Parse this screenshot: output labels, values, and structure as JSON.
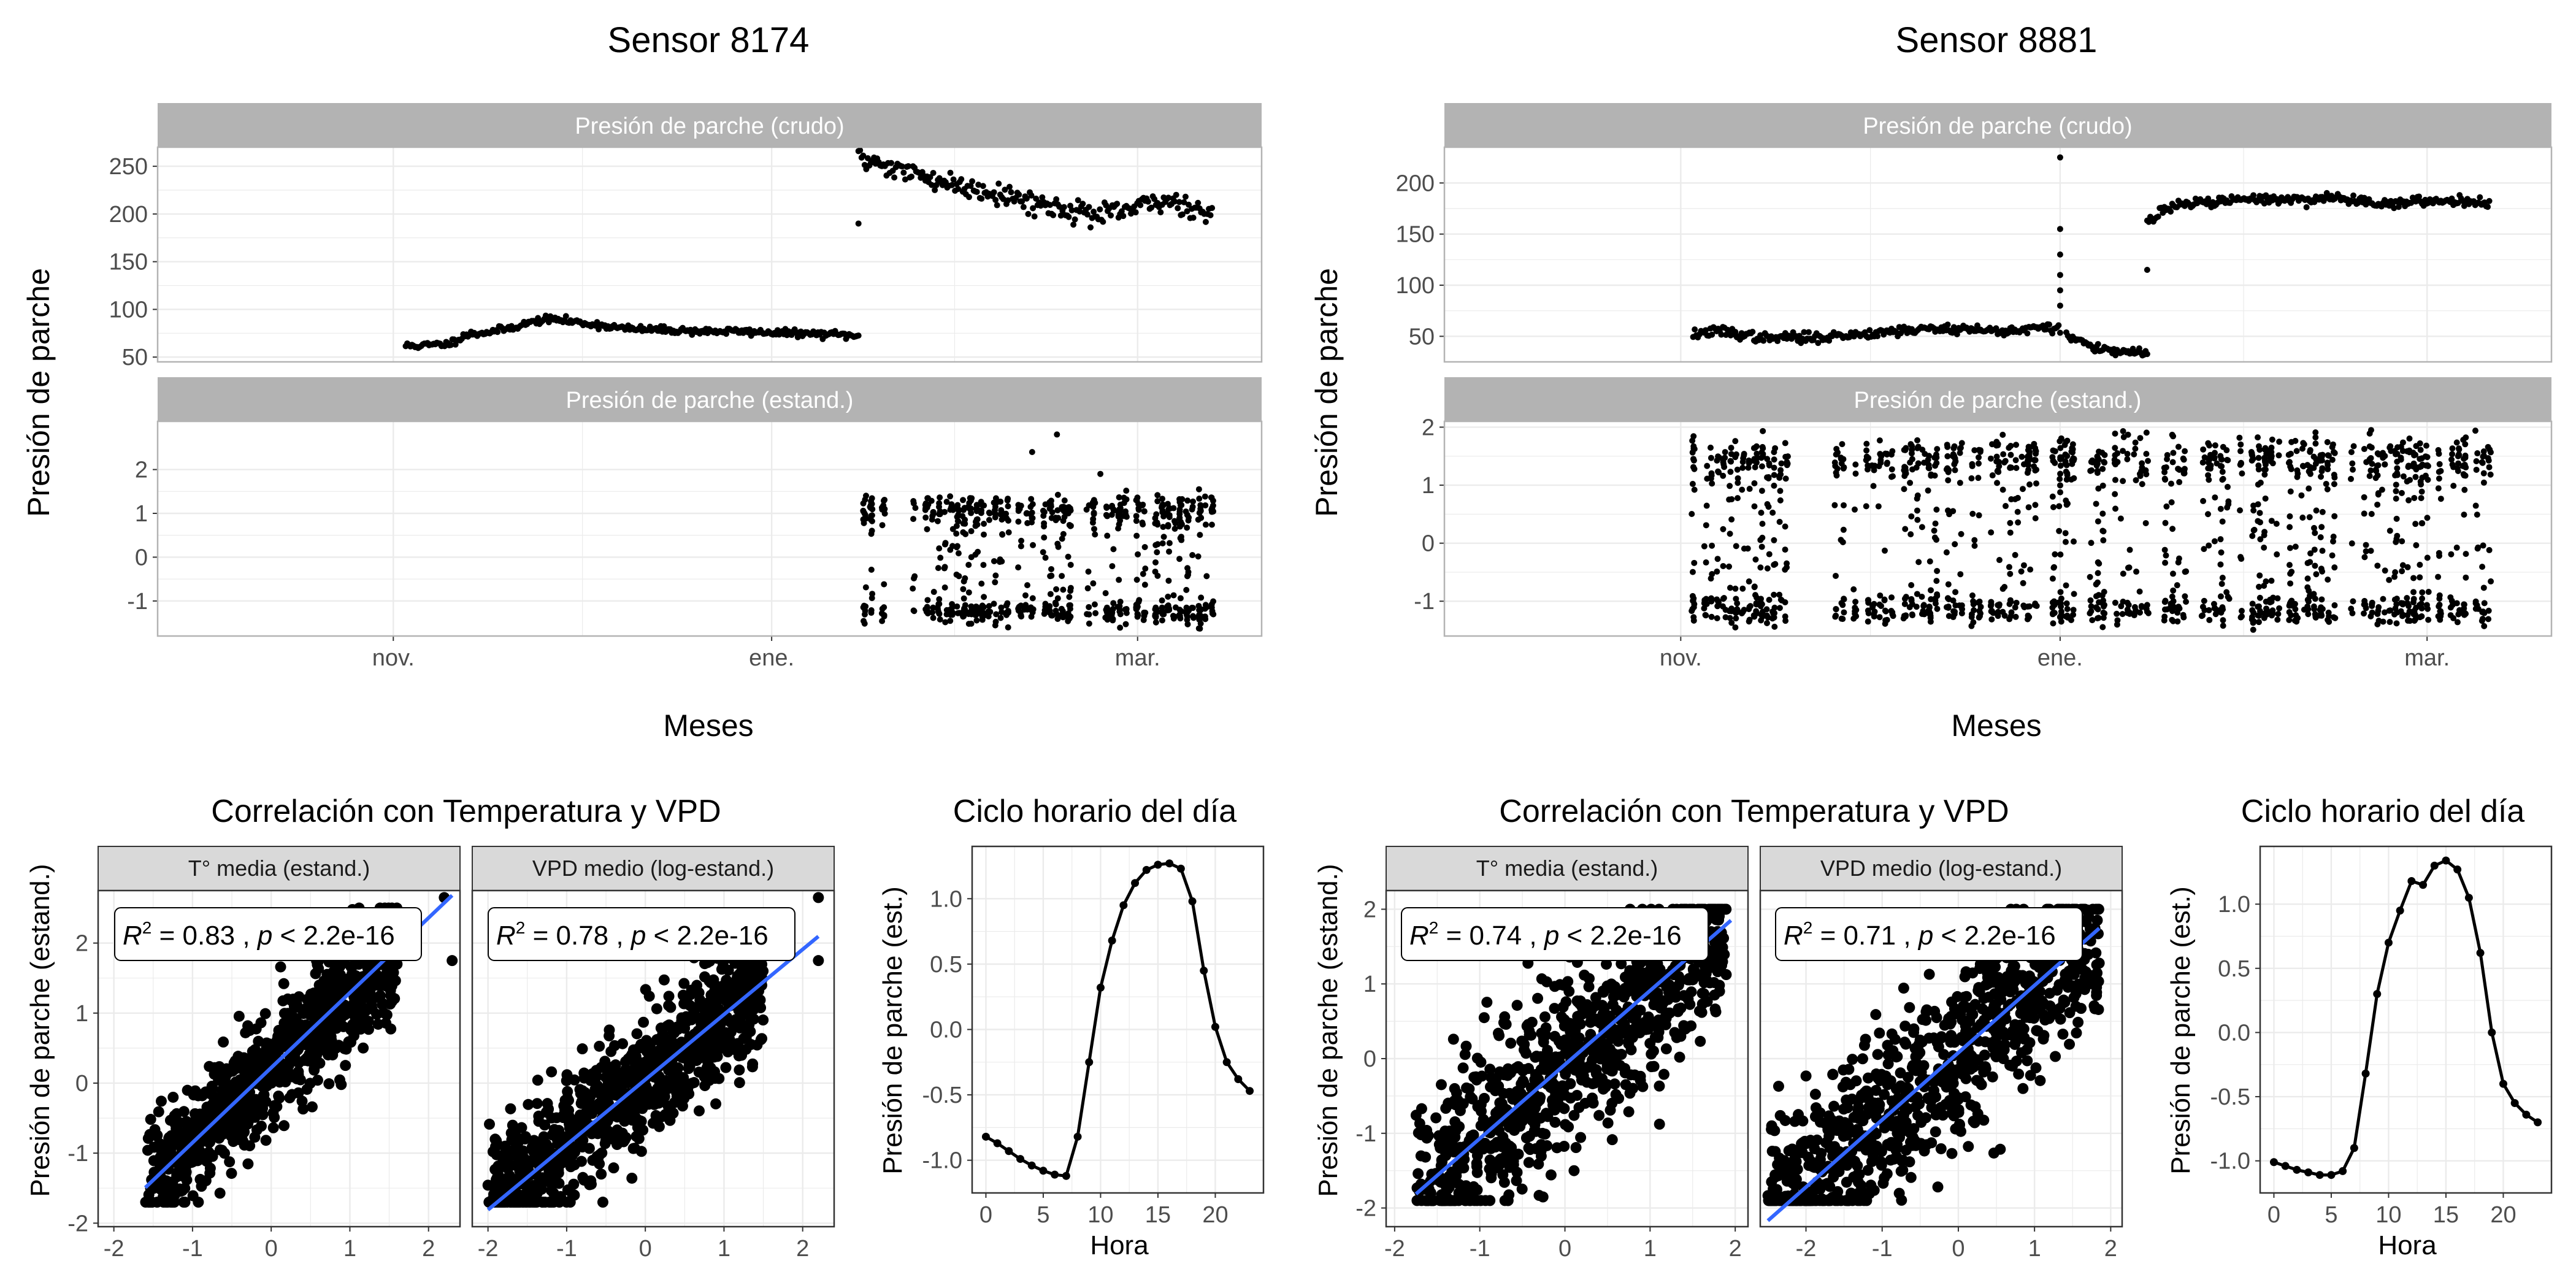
{
  "figure": {
    "sensor_a": {
      "title": "Sensor 8174",
      "ylabel": "Presión de parche",
      "xlabel": "Meses",
      "strip_raw": "Presión de parche (crudo)",
      "strip_std": "Presión de parche (estand.)",
      "corr_title": "Correlación con Temperatura y VPD",
      "corr_ylabel": "Presión de parche (estand.)",
      "strip_temp": "T° media (estand.)",
      "strip_vpd": "VPD medio (log-estand.)",
      "stat_temp": {
        "r2": "0.83",
        "p": "2.2e-16"
      },
      "stat_vpd": {
        "r2": "0.78",
        "p": "2.2e-16"
      },
      "cycle_title": "Ciclo horario del día",
      "cycle_ylabel": "Presión de parche (est.)",
      "cycle_xlabel": "Hora"
    },
    "sensor_b": {
      "title": "Sensor 8881",
      "ylabel": "Presión de parche",
      "xlabel": "Meses",
      "strip_raw": "Presión de parche (crudo)",
      "strip_std": "Presión de parche (estand.)",
      "corr_title": "Correlación con Temperatura y VPD",
      "corr_ylabel": "Presión de parche (estand.)",
      "strip_temp": "T° media (estand.)",
      "strip_vpd": "VPD medio (log-estand.)",
      "stat_temp": {
        "r2": "0.74",
        "p": "2.2e-16"
      },
      "stat_vpd": {
        "r2": "0.71",
        "p": "2.2e-16"
      },
      "cycle_title": "Ciclo horario del día",
      "cycle_ylabel": "Presión de parche (est.)",
      "cycle_xlabel": "Hora"
    }
  },
  "colors": {
    "points": "#000000",
    "fit_line": "#3366ff",
    "strip_dark": "#b3b3b3",
    "strip_light": "#d9d9d9",
    "grid": "#ebebeb",
    "panel_border": "#b3b3b3"
  },
  "chart_data": [
    {
      "id": "s8174_raw",
      "type": "scatter",
      "title": "Sensor 8174",
      "facet": "Presión de parche (crudo)",
      "xlabel": "Meses",
      "ylabel": "Presión de parche",
      "x_ticks": [
        "nov.",
        "ene.",
        "mar."
      ],
      "y_ticks": [
        50,
        100,
        150,
        200,
        250
      ],
      "ylim": [
        45,
        270
      ],
      "x_ticks_days": [
        0,
        61,
        120
      ],
      "xlim_days": [
        -38,
        140
      ],
      "segments": [
        {
          "name": "fase 1",
          "x_start": 2,
          "x_end": 75,
          "values": [
            62,
            62,
            63,
            64,
            73,
            75,
            77,
            80,
            84,
            88,
            90,
            88,
            86,
            84,
            82,
            80,
            79,
            79,
            78,
            78,
            77,
            77,
            77,
            77,
            76,
            76,
            75,
            75,
            74,
            74,
            73,
            72
          ],
          "spread": 3
        },
        {
          "name": "fase 2",
          "x_start": 75,
          "x_end": 132,
          "values": [
            258,
            256,
            250,
            245,
            240,
            236,
            232,
            228,
            226,
            222,
            218,
            214,
            210,
            206,
            205,
            200,
            198,
            202,
            206,
            210,
            214,
            212,
            205,
            200
          ],
          "spread": 10
        }
      ],
      "outliers": [
        {
          "x": 75,
          "y": 190
        }
      ]
    },
    {
      "id": "s8174_std",
      "type": "scatter",
      "title": "Sensor 8174",
      "facet": "Presión de parche (estand.)",
      "xlabel": "Meses",
      "ylabel": "Presión de parche",
      "x_ticks": [
        "nov.",
        "ene.",
        "mar."
      ],
      "y_ticks": [
        -1,
        0,
        1,
        2
      ],
      "ylim": [
        -1.8,
        3.1
      ],
      "xlim_days": [
        -38,
        140
      ],
      "x_range_days": [
        75,
        132
      ],
      "y_range": [
        -1.5,
        1.5
      ],
      "outliers": [
        {
          "x": 107,
          "y": 2.8
        },
        {
          "x": 103,
          "y": 2.4
        },
        {
          "x": 114,
          "y": 1.9
        }
      ]
    },
    {
      "id": "s8881_raw",
      "type": "scatter",
      "title": "Sensor 8881",
      "facet": "Presión de parche (crudo)",
      "xlabel": "Meses",
      "ylabel": "Presión de parche",
      "x_ticks": [
        "nov.",
        "ene.",
        "mar."
      ],
      "y_ticks": [
        50,
        100,
        150,
        200
      ],
      "ylim": [
        25,
        235
      ],
      "xlim_days": [
        -38,
        140
      ],
      "segments": [
        {
          "name": "fase 1",
          "x_start": 2,
          "x_end": 61,
          "values": [
            52,
            54,
            55,
            52,
            50,
            47,
            50,
            48,
            49,
            50,
            51,
            52,
            54,
            55,
            56,
            57,
            57,
            58,
            57,
            56,
            55,
            56,
            57,
            58,
            58
          ],
          "spread": 4
        },
        {
          "name": "fase 2",
          "x_start": 62,
          "x_end": 75,
          "values": [
            50,
            47,
            44,
            40,
            37,
            35,
            34,
            35,
            34,
            33
          ],
          "spread": 3
        },
        {
          "name": "fase 3",
          "x_start": 75,
          "x_end": 130,
          "values": [
            162,
            172,
            178,
            180,
            181,
            182,
            183,
            184,
            185,
            184,
            183,
            184,
            186,
            185,
            183,
            182,
            180,
            180,
            181,
            182,
            183,
            183,
            182,
            181
          ],
          "spread": 4
        }
      ],
      "outliers": [
        {
          "x": 61,
          "y": 225
        },
        {
          "x": 61,
          "y": 155
        },
        {
          "x": 61,
          "y": 130
        },
        {
          "x": 61,
          "y": 110
        },
        {
          "x": 61,
          "y": 95
        },
        {
          "x": 61,
          "y": 80
        },
        {
          "x": 75,
          "y": 115
        }
      ]
    },
    {
      "id": "s8881_std",
      "type": "scatter",
      "title": "Sensor 8881",
      "facet": "Presión de parche (estand.)",
      "xlabel": "Meses",
      "ylabel": "Presión de parche",
      "x_ticks": [
        "nov.",
        "ene.",
        "mar."
      ],
      "y_ticks": [
        -1,
        0,
        1,
        2
      ],
      "ylim": [
        -1.6,
        2.1
      ],
      "xlim_days": [
        -38,
        140
      ],
      "x_range_days": [
        2,
        130
      ],
      "y_range": [
        -1.4,
        1.9
      ]
    },
    {
      "id": "s8174_temp",
      "type": "scatter",
      "facet": "T° media (estand.)",
      "ylabel": "Presión de parche (estand.)",
      "x_ticks": [
        -2,
        -1,
        0,
        1,
        2
      ],
      "y_ticks": [
        -2,
        1,
        0,
        -1,
        2
      ],
      "xlim": [
        -2.2,
        2.4
      ],
      "ylim": [
        -2.05,
        2.75
      ],
      "fit": {
        "slope": 1.07,
        "intercept": 0.22,
        "x_from": -1.6,
        "x_to": 2.3
      },
      "cloud": {
        "x_from": -1.6,
        "x_to": 1.6,
        "spread": 0.42
      },
      "outliers": [
        {
          "x": 2.2,
          "y": 2.65
        },
        {
          "x": 2.3,
          "y": 1.75
        }
      ],
      "stat_label": "R² = 0.83 , p < 2.2e-16"
    },
    {
      "id": "s8174_vpd",
      "type": "scatter",
      "facet": "VPD medio (log-estand.)",
      "x_ticks": [
        -2,
        -1,
        0,
        1,
        2
      ],
      "xlim": [
        -2.2,
        2.4
      ],
      "ylim": [
        -2.05,
        2.75
      ],
      "fit": {
        "slope": 0.93,
        "intercept": 0.05,
        "x_from": -2.0,
        "x_to": 2.2
      },
      "cloud": {
        "x_from": -2.0,
        "x_to": 1.5,
        "spread": 0.45
      },
      "outliers": [
        {
          "x": 2.2,
          "y": 2.65
        },
        {
          "x": 2.2,
          "y": 1.75
        }
      ],
      "stat_label": "R² = 0.78 , p < 2.2e-16"
    },
    {
      "id": "s8174_cycle",
      "type": "line",
      "title": "Ciclo horario del día",
      "xlabel": "Hora",
      "ylabel": "Presión de parche (est.)",
      "x_ticks": [
        0,
        5,
        10,
        15,
        20
      ],
      "y_ticks": [
        -1.0,
        -0.5,
        0.0,
        0.5,
        1.0
      ],
      "xlim": [
        -1.2,
        24.2
      ],
      "ylim": [
        -1.25,
        1.4
      ],
      "x": [
        0,
        1,
        2,
        3,
        4,
        5,
        6,
        7,
        8,
        9,
        10,
        11,
        12,
        13,
        14,
        15,
        16,
        17,
        18,
        19,
        20,
        21,
        22,
        23
      ],
      "y": [
        -0.82,
        -0.87,
        -0.93,
        -0.99,
        -1.04,
        -1.08,
        -1.11,
        -1.12,
        -0.82,
        -0.25,
        0.32,
        0.68,
        0.95,
        1.12,
        1.22,
        1.26,
        1.27,
        1.23,
        0.98,
        0.45,
        0.02,
        -0.25,
        -0.38,
        -0.47
      ]
    },
    {
      "id": "s8881_temp",
      "type": "scatter",
      "facet": "T° media (estand.)",
      "ylabel": "Presión de parche (estand.)",
      "x_ticks": [
        -2,
        -1,
        0,
        1,
        2
      ],
      "y_ticks": [
        -2,
        -1,
        0,
        1,
        2
      ],
      "xlim": [
        -2.1,
        2.15
      ],
      "ylim": [
        -2.25,
        2.25
      ],
      "fit": {
        "slope": 0.99,
        "intercept": -0.08,
        "x_from": -1.75,
        "x_to": 1.95
      },
      "cloud": {
        "x_from": -1.75,
        "x_to": 1.9,
        "spread": 0.6
      },
      "outliers": [],
      "stat_label": "R² = 0.74 , p < 2.2e-16"
    },
    {
      "id": "s8881_vpd",
      "type": "scatter",
      "facet": "VPD medio (log-estand.)",
      "x_ticks": [
        -2,
        -1,
        0,
        1,
        2
      ],
      "xlim": [
        -2.6,
        2.15
      ],
      "ylim": [
        -2.25,
        2.25
      ],
      "fit": {
        "slope": 0.9,
        "intercept": 0.08,
        "x_from": -2.5,
        "x_to": 1.85
      },
      "cloud": {
        "x_from": -2.5,
        "x_to": 1.85,
        "spread": 0.6
      },
      "outliers": [
        {
          "x": -2.45,
          "y": -0.9
        }
      ],
      "stat_label": "R² = 0.71 , p < 2.2e-16"
    },
    {
      "id": "s8881_cycle",
      "type": "line",
      "title": "Ciclo horario del día",
      "xlabel": "Hora",
      "ylabel": "Presión de parche (est.)",
      "x_ticks": [
        0,
        5,
        10,
        15,
        20
      ],
      "y_ticks": [
        -1.0,
        -0.5,
        0.0,
        0.5,
        1.0
      ],
      "xlim": [
        -1.2,
        24.2
      ],
      "ylim": [
        -1.25,
        1.45
      ],
      "x": [
        0,
        1,
        2,
        3,
        4,
        5,
        6,
        7,
        8,
        9,
        10,
        11,
        12,
        13,
        14,
        15,
        16,
        17,
        18,
        19,
        20,
        21,
        22,
        23
      ],
      "y": [
        -1.01,
        -1.04,
        -1.07,
        -1.09,
        -1.11,
        -1.11,
        -1.08,
        -0.9,
        -0.32,
        0.3,
        0.7,
        0.95,
        1.18,
        1.15,
        1.3,
        1.34,
        1.27,
        1.05,
        0.62,
        0.0,
        -0.4,
        -0.55,
        -0.64,
        -0.7
      ]
    }
  ]
}
